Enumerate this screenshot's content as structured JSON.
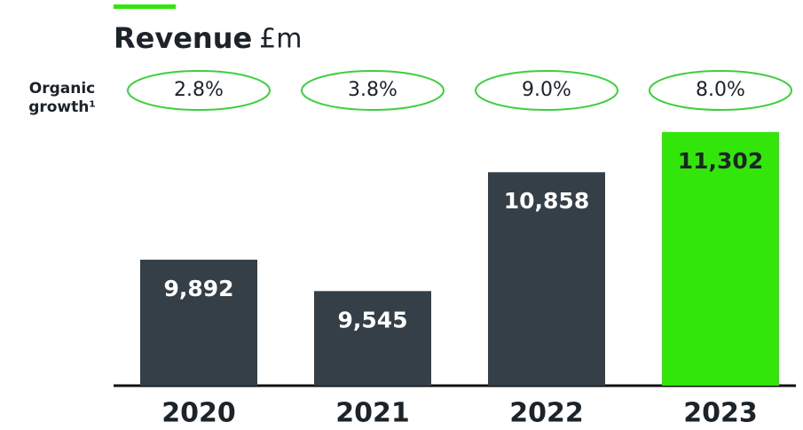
{
  "chart_data": {
    "type": "bar",
    "title": "Revenue",
    "unit": "£m",
    "growth_label": [
      "Organic",
      "growth¹"
    ],
    "growth": {
      "values": [
        2.8,
        3.8,
        9.0,
        8.0
      ],
      "value_labels": [
        "2.8%",
        "3.8%",
        "9.0%",
        "8.0%"
      ],
      "color": "#3ccf3c"
    },
    "categories": [
      "2020",
      "2021",
      "2022",
      "2023"
    ],
    "values": [
      9892,
      9545,
      10858,
      11302
    ],
    "value_labels": [
      "9,892",
      "9,545",
      "10,858",
      "11,302"
    ],
    "colors": [
      "#343f48",
      "#343f48",
      "#343f48",
      "#33e609"
    ],
    "label_colors": [
      "#ffffff",
      "#ffffff",
      "#ffffff",
      "#1c2329"
    ],
    "ylim": [
      8500,
      11500
    ]
  }
}
